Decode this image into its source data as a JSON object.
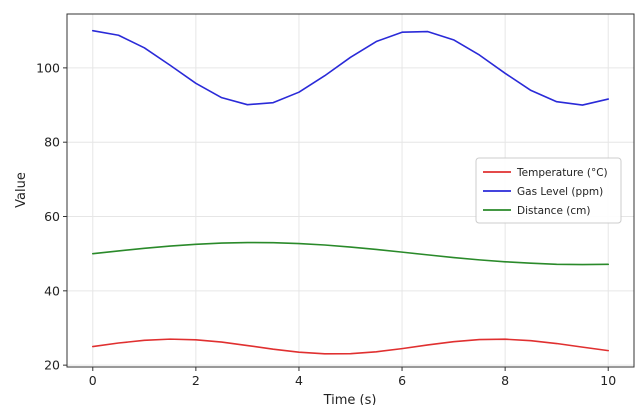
{
  "chart_data": {
    "type": "line",
    "title": "",
    "xlabel": "Time (s)",
    "ylabel": "Value",
    "xlim": [
      -0.5,
      10.5
    ],
    "ylim": [
      19.5,
      114.5
    ],
    "xticks": [
      0,
      2,
      4,
      6,
      8,
      10
    ],
    "yticks": [
      20,
      40,
      60,
      80,
      100
    ],
    "grid": true,
    "legend_position": "center-right",
    "series": [
      {
        "name": "Temperature (°C)",
        "color": "#e03030",
        "x": [
          0,
          0.5,
          1,
          1.5,
          2,
          2.5,
          3,
          3.5,
          4,
          4.5,
          5,
          5.5,
          6,
          6.5,
          7,
          7.5,
          8,
          8.5,
          9,
          9.5,
          10
        ],
        "values": [
          25.0,
          25.96,
          26.68,
          27.0,
          26.82,
          26.2,
          25.28,
          24.3,
          23.49,
          23.04,
          23.08,
          23.59,
          24.44,
          25.43,
          26.31,
          26.88,
          26.98,
          26.59,
          25.82,
          24.85,
          23.91
        ]
      },
      {
        "name": "Gas Level (ppm)",
        "color": "#2a2ad8",
        "x": [
          0,
          0.5,
          1,
          1.5,
          2,
          2.5,
          3,
          3.5,
          4,
          4.5,
          5,
          5.5,
          6,
          6.5,
          7,
          7.5,
          8,
          8.5,
          9,
          9.5,
          10
        ],
        "values": [
          110.0,
          108.78,
          105.4,
          100.71,
          95.84,
          91.99,
          90.1,
          90.64,
          93.46,
          97.89,
          102.84,
          107.09,
          109.6,
          109.77,
          107.54,
          103.47,
          98.54,
          93.94,
          90.89,
          90.0,
          91.61
        ]
      },
      {
        "name": "Distance (cm)",
        "color": "#2a8a2a",
        "x": [
          0,
          0.5,
          1,
          1.5,
          2,
          2.5,
          3,
          3.5,
          4,
          4.5,
          5,
          5.5,
          6,
          6.5,
          7,
          7.5,
          8,
          8.5,
          9,
          9.5,
          10
        ],
        "values": [
          50.0,
          50.74,
          51.44,
          52.04,
          52.52,
          52.85,
          53.0,
          52.95,
          52.73,
          52.33,
          51.79,
          51.13,
          50.41,
          49.67,
          48.96,
          48.33,
          47.82,
          47.43,
          47.13,
          47.07,
          47.13
        ]
      }
    ]
  }
}
